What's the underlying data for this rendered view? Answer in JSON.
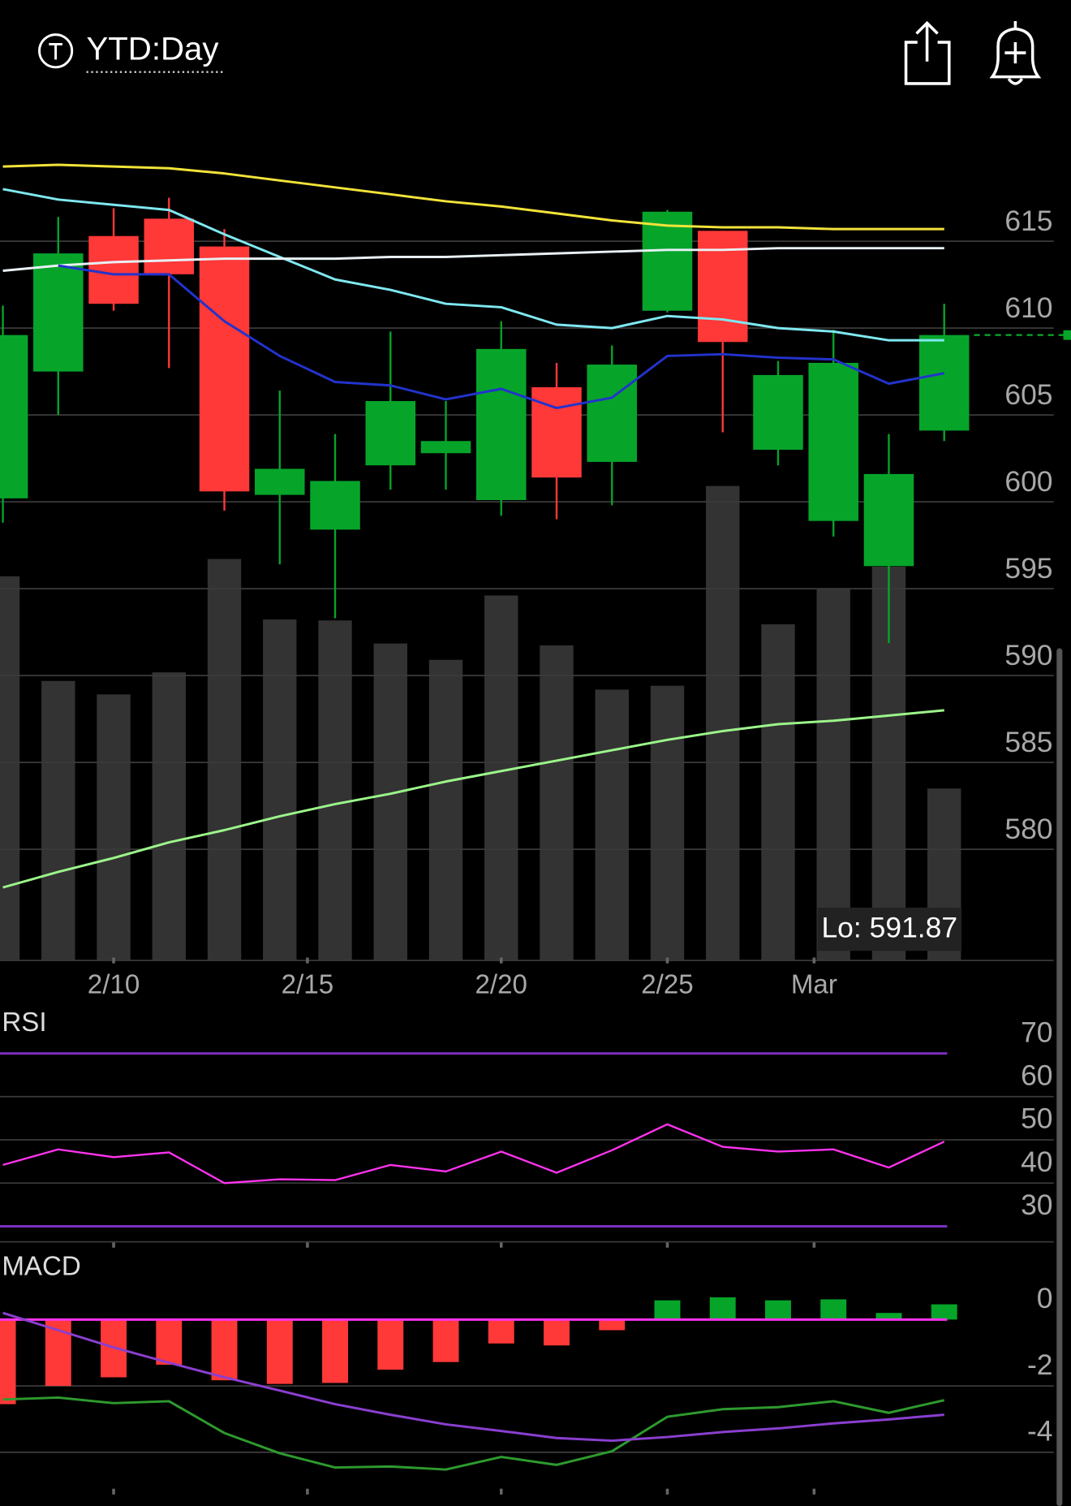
{
  "header": {
    "title": "YTD:Day"
  },
  "chart_data": [
    {
      "type": "candlestick",
      "up_color": "#06a52a",
      "down_color": "#ff3838",
      "open": [
        600.2,
        607.5,
        615.3,
        616.3,
        614.7,
        600.4,
        598.4,
        602.1,
        602.8,
        600.1,
        606.6,
        602.3,
        611.0,
        615.6,
        603.0,
        598.9,
        596.3,
        604.1
      ],
      "high": [
        611.3,
        616.4,
        616.9,
        617.5,
        615.7,
        606.4,
        603.9,
        609.8,
        605.8,
        610.4,
        608.0,
        609.0,
        616.8,
        615.6,
        608.1,
        609.9,
        603.9,
        611.4
      ],
      "low": [
        598.8,
        605.0,
        611.0,
        607.7,
        599.5,
        596.4,
        593.3,
        600.7,
        600.7,
        599.2,
        599.0,
        599.8,
        610.9,
        604.0,
        602.1,
        598.0,
        591.87,
        603.5
      ],
      "close": [
        609.6,
        614.3,
        611.4,
        613.1,
        600.6,
        601.9,
        601.2,
        605.8,
        603.5,
        608.8,
        601.4,
        607.9,
        616.7,
        609.2,
        607.3,
        608.0,
        601.6,
        609.6
      ],
      "volume": {
        "color": "#333333",
        "lim": [
          0,
          870
        ],
        "values": [
          400,
          291,
          277,
          300,
          418,
          355,
          354,
          330,
          313,
          380,
          328,
          282,
          286,
          494,
          350,
          387,
          410,
          179
        ]
      },
      "series": [
        {
          "color": "#f2e33a",
          "values": [
            619.3,
            619.4,
            619.3,
            619.2,
            618.9,
            618.5,
            618.1,
            617.7,
            617.3,
            617.0,
            616.6,
            616.2,
            615.9,
            615.8,
            615.8,
            615.7,
            615.7,
            615.7
          ]
        },
        {
          "color": "#7fe8f0",
          "values": [
            618.0,
            617.4,
            617.1,
            616.8,
            615.4,
            614.1,
            612.8,
            612.2,
            611.4,
            611.2,
            610.2,
            610.0,
            610.7,
            610.5,
            610.0,
            609.8,
            609.3,
            609.3
          ]
        },
        {
          "color": "#e8f0f4",
          "values": [
            613.3,
            613.6,
            613.8,
            613.9,
            614.0,
            614.0,
            614.0,
            614.1,
            614.1,
            614.2,
            614.3,
            614.4,
            614.5,
            614.5,
            614.6,
            614.6,
            614.6,
            614.6
          ]
        },
        {
          "color": "#2233cc",
          "values": [
            null,
            613.6,
            613.1,
            613.1,
            610.4,
            608.4,
            606.9,
            606.7,
            605.9,
            606.5,
            605.4,
            606.0,
            608.4,
            608.5,
            608.3,
            608.2,
            606.8,
            607.4
          ]
        },
        {
          "color": "#9cf58a",
          "values": [
            577.8,
            578.7,
            579.5,
            580.4,
            581.1,
            581.9,
            582.6,
            583.2,
            583.9,
            584.5,
            585.1,
            585.7,
            586.3,
            586.8,
            587.2,
            587.4,
            587.7,
            588.0
          ]
        }
      ],
      "low_label": "Lo: 591.87",
      "xlim": [
        -0.052,
        19.29
      ],
      "xticks": [
        {
          "value": 2,
          "label": "2/10"
        },
        {
          "value": 5.5,
          "label": "2/15"
        },
        {
          "value": 9,
          "label": "2/20"
        },
        {
          "value": 12,
          "label": "2/25"
        },
        {
          "value": 14.65,
          "label": "Mar"
        }
      ],
      "ylim": [
        573.6,
        621.7
      ],
      "yticks": [
        615,
        610,
        605,
        600,
        595,
        590,
        585,
        580
      ]
    },
    {
      "type": "line",
      "title": "RSI",
      "series": [
        {
          "color": "#ff33ee",
          "values": [
            44.2,
            47.8,
            46.0,
            47.1,
            40.0,
            40.9,
            40.7,
            44.2,
            42.7,
            47.3,
            42.4,
            47.6,
            53.6,
            48.4,
            47.3,
            47.8,
            43.6,
            49.6
          ]
        }
      ],
      "levels": [
        70,
        30
      ],
      "level_color": "#7a2fc0",
      "ylim": [
        26.4,
        80.4
      ],
      "yticks": [
        70,
        60,
        50,
        40,
        30
      ]
    },
    {
      "type": "macd",
      "title": "MACD",
      "up_color": "#06a52a",
      "down_color": "#ff3838",
      "zero_color": "#ff33ee",
      "histogram": [
        -2.55,
        -2.0,
        -1.74,
        -1.36,
        -1.83,
        -1.94,
        -1.91,
        -1.51,
        -1.28,
        -0.72,
        -0.78,
        -0.32,
        0.58,
        0.67,
        0.58,
        0.61,
        0.2,
        0.46
      ],
      "series": [
        {
          "color": "#2e9a2e",
          "values": [
            -2.41,
            -2.35,
            -2.52,
            -2.46,
            -3.42,
            -4.03,
            -4.46,
            -4.43,
            -4.52,
            -4.14,
            -4.38,
            -3.97,
            -2.93,
            -2.7,
            -2.64,
            -2.46,
            -2.81,
            -2.43
          ]
        },
        {
          "color": "#8a3fd0",
          "values": [
            0.2,
            -0.32,
            -0.84,
            -1.3,
            -1.74,
            -2.14,
            -2.55,
            -2.87,
            -3.16,
            -3.36,
            -3.57,
            -3.65,
            -3.54,
            -3.39,
            -3.28,
            -3.13,
            -3.01,
            -2.87
          ]
        }
      ],
      "ylim": [
        -5.62,
        2.14
      ],
      "yticks": [
        0,
        -2,
        -4
      ]
    }
  ]
}
